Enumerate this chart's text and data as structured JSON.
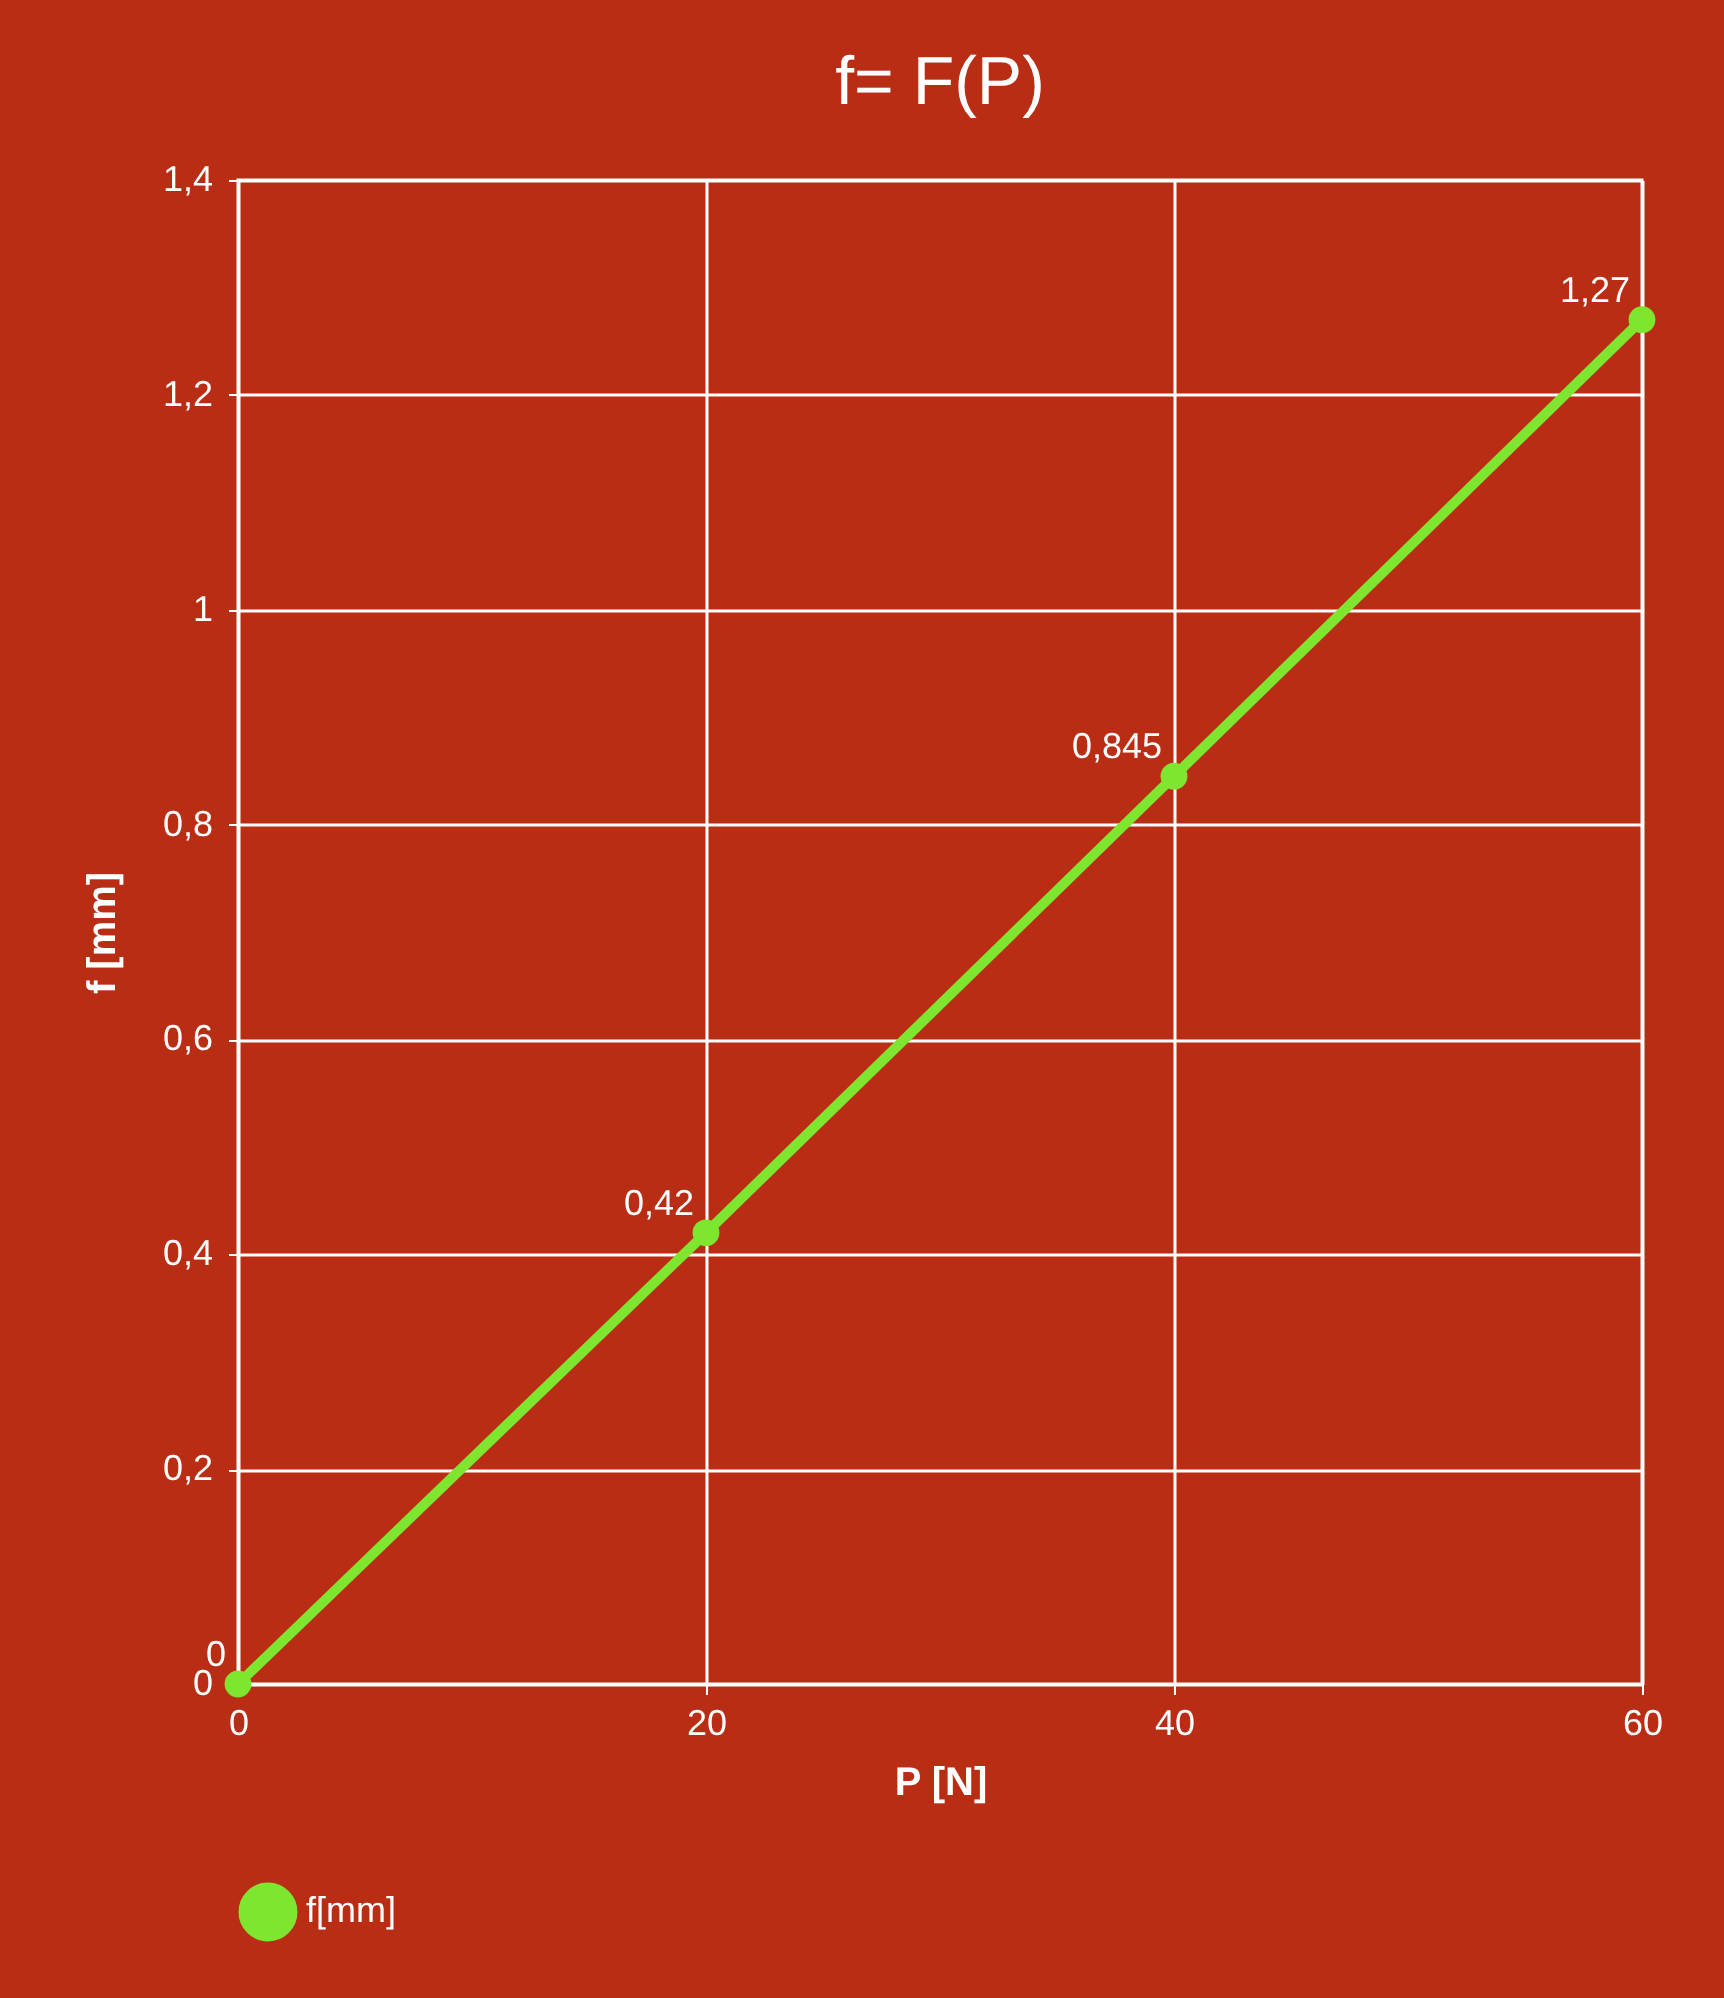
{
  "chart_data": {
    "type": "line",
    "title": "f= F(P)",
    "xlabel": "P [N]",
    "ylabel": "f [mm]",
    "x": [
      0,
      20,
      40,
      60
    ],
    "series": [
      {
        "name": "f[mm]",
        "color": "#7ee62e",
        "values": [
          0,
          0.42,
          0.845,
          1.27
        ],
        "value_labels": [
          "0",
          "0,42",
          "0,845",
          "1,27"
        ]
      }
    ],
    "xlim": [
      0,
      60
    ],
    "xticks": [
      0,
      20,
      40,
      60
    ],
    "ylim": [
      0,
      1.4
    ],
    "yticks": [
      0,
      {
        "value": 0.2,
        "label": "0,2"
      },
      {
        "value": 0.4,
        "label": "0,4"
      },
      {
        "value": 0.6,
        "label": "0,6"
      },
      {
        "value": 0.8,
        "label": "0,8"
      },
      1,
      {
        "value": 1.2,
        "label": "1,2"
      },
      {
        "value": 1.4,
        "label": "1,4"
      }
    ],
    "grid": true,
    "legend": "bottom",
    "marker": "circle",
    "line_style": "solid"
  }
}
